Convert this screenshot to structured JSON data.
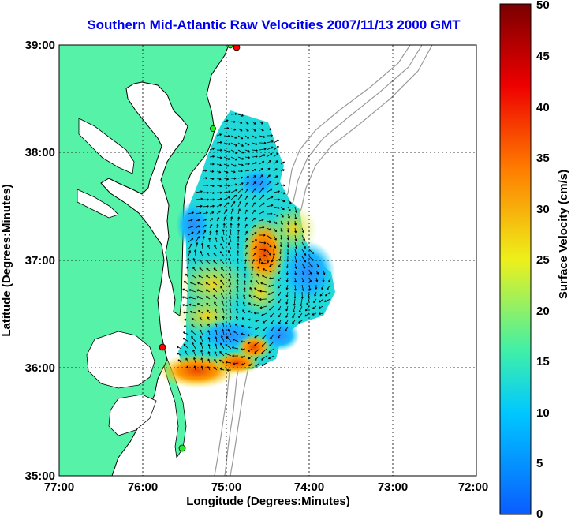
{
  "title": "Southern Mid-Atlantic Raw Velocities 2007/11/13 2000 GMT",
  "x_axis": {
    "label": "Longitude (Degrees:Minutes)",
    "ticks": [
      "77:00",
      "76:00",
      "75:00",
      "74:00",
      "73:00",
      "72:00"
    ]
  },
  "y_axis": {
    "label": "Latitude (Degrees:Minutes)",
    "ticks": [
      "39:00",
      "38:00",
      "37:00",
      "36:00",
      "35:00"
    ]
  },
  "colorbar": {
    "label": "Surface Velocity (cm/s)",
    "ticks": [
      "50",
      "45",
      "40",
      "35",
      "30",
      "25",
      "20",
      "15",
      "10",
      "5",
      "0"
    ],
    "min": 0,
    "max": 50,
    "colors": [
      "#0a5cff",
      "#00c8ff",
      "#3ff0a8",
      "#eef01a",
      "#ff7a00",
      "#ee0000",
      "#7a0000"
    ]
  },
  "colors": {
    "land": "#55f2a8",
    "coast": "#000000",
    "bathymetry": "#9a9a9a",
    "grid": "#000000",
    "title": "#0000ee",
    "station_red": "#ff0000",
    "station_green": "#22ee22",
    "arrows": "#000000"
  },
  "map_extent": {
    "lon": [
      -77,
      -72
    ],
    "lat": [
      35,
      39
    ]
  }
}
